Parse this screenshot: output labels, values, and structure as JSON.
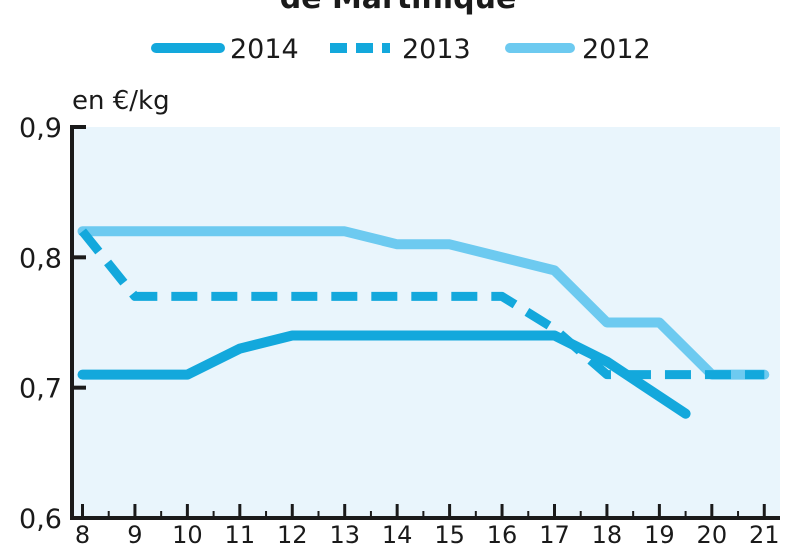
{
  "chart_data": {
    "type": "line",
    "title": "de Martinique",
    "ylabel": "en €/kg",
    "xlabel": "",
    "ylim": [
      0.6,
      0.9
    ],
    "yticks": [
      "0,6",
      "0,7",
      "0,8",
      "0,9"
    ],
    "ytick_values": [
      0.6,
      0.7,
      0.8,
      0.9
    ],
    "xlim": [
      7.8,
      21.3
    ],
    "xticks": [
      8,
      9,
      10,
      11,
      12,
      13,
      14,
      15,
      16,
      17,
      18,
      19,
      20,
      21
    ],
    "grid": false,
    "legend_placement": "top-center",
    "colors": {
      "plot_background": "#e9f5fc",
      "axis": "#1a1a1a",
      "series_2014": "#13a8dc",
      "series_2013": "#13a8dc",
      "series_2012": "#6dcaf0"
    },
    "series": [
      {
        "name": "2014",
        "style": "solid",
        "x": [
          8,
          10,
          11,
          12,
          17,
          18,
          19.5
        ],
        "y": [
          0.71,
          0.71,
          0.73,
          0.74,
          0.74,
          0.72,
          0.68
        ]
      },
      {
        "name": "2013",
        "style": "dashed",
        "x": [
          8,
          9,
          16,
          17,
          18,
          21
        ],
        "y": [
          0.82,
          0.77,
          0.77,
          0.745,
          0.71,
          0.71
        ]
      },
      {
        "name": "2012",
        "style": "solid",
        "x": [
          8,
          13,
          14,
          15,
          17,
          18,
          19,
          20,
          21
        ],
        "y": [
          0.82,
          0.82,
          0.81,
          0.81,
          0.79,
          0.75,
          0.75,
          0.71,
          0.71
        ]
      }
    ]
  }
}
